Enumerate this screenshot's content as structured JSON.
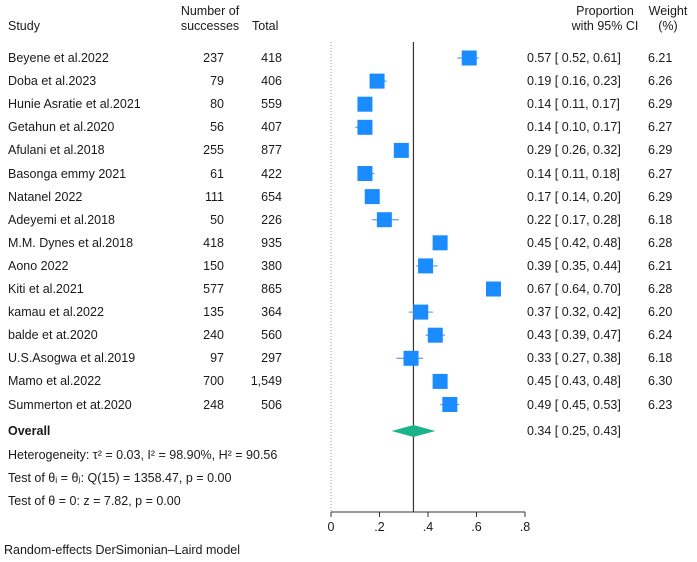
{
  "headers": {
    "study": "Study",
    "successes_line1": "Number of",
    "successes_line2": "successes",
    "total": "Total",
    "proportion_line1": "Proportion",
    "proportion_line2": "with 95% CI",
    "weight_line1": "Weight",
    "weight_line2": "(%)"
  },
  "studies": [
    {
      "study": "Beyene et al.2022",
      "successes": "237",
      "total": "418",
      "ci_text": "0.57 [ 0.52, 0.61]",
      "weight": "6.21"
    },
    {
      "study": "Doba et al.2023",
      "successes": "79",
      "total": "406",
      "ci_text": "0.19 [ 0.16, 0.23]",
      "weight": "6.26"
    },
    {
      "study": "Hunie Asratie et al.2021",
      "successes": "80",
      "total": "559",
      "ci_text": "0.14 [ 0.11, 0.17]",
      "weight": "6.29"
    },
    {
      "study": "Getahun et al.2020",
      "successes": "56",
      "total": "407",
      "ci_text": "0.14 [ 0.10, 0.17]",
      "weight": "6.27"
    },
    {
      "study": "Afulani et al.2018",
      "successes": "255",
      "total": "877",
      "ci_text": "0.29 [ 0.26, 0.32]",
      "weight": "6.29"
    },
    {
      "study": "Basonga emmy 2021",
      "successes": "61",
      "total": "422",
      "ci_text": "0.14 [ 0.11, 0.18]",
      "weight": "6.27"
    },
    {
      "study": "Natanel 2022",
      "successes": "111",
      "total": "654",
      "ci_text": "0.17 [ 0.14, 0.20]",
      "weight": "6.29"
    },
    {
      "study": "Adeyemi et al.2018",
      "successes": "50",
      "total": "226",
      "ci_text": "0.22 [ 0.17, 0.28]",
      "weight": "6.18"
    },
    {
      "study": "M.M. Dynes et al.2018",
      "successes": "418",
      "total": "935",
      "ci_text": "0.45 [ 0.42, 0.48]",
      "weight": "6.28"
    },
    {
      "study": "Aono 2022",
      "successes": "150",
      "total": "380",
      "ci_text": "0.39 [ 0.35, 0.44]",
      "weight": "6.21"
    },
    {
      "study": " Kiti et al.2021",
      "successes": "577",
      "total": "865",
      "ci_text": "0.67 [ 0.64, 0.70]",
      "weight": "6.28"
    },
    {
      "study": "kamau et al.2022",
      "successes": "135",
      "total": "364",
      "ci_text": "0.37 [ 0.32, 0.42]",
      "weight": "6.20"
    },
    {
      "study": "balde et at.2020",
      "successes": "240",
      "total": "560",
      "ci_text": "0.43 [ 0.39, 0.47]",
      "weight": "6.24"
    },
    {
      "study": "U.S.Asogwa et al.2019",
      "successes": "97",
      "total": "297",
      "ci_text": "0.33 [ 0.27, 0.38]",
      "weight": "6.18"
    },
    {
      "study": "Mamo et al.2022",
      "successes": "700",
      "total": "1,549",
      "ci_text": "0.45 [ 0.43, 0.48]",
      "weight": "6.30"
    },
    {
      "study": "Summerton et at.2020",
      "successes": "248",
      "total": "506",
      "ci_text": "0.49 [ 0.45, 0.53]",
      "weight": "6.23"
    }
  ],
  "overall": {
    "label": "Overall",
    "ci_text": "0.34 [ 0.25, 0.43]"
  },
  "stats": {
    "heterogeneity": "Heterogeneity: τ² = 0.03, I² = 98.90%, H² = 90.56",
    "test_equal": "Test of θᵢ = θⱼ: Q(15) = 1358.47, p = 0.00",
    "test_zero": "Test of θ = 0: z = 7.82, p = 0.00"
  },
  "footer": "Random-effects DerSimonian–Laird model",
  "colors": {
    "marker": "#1a8cff",
    "ci_line": "#6aa8e8",
    "diamond": "#1db38a",
    "axis": "#333333",
    "null_line": "#999999"
  },
  "chart_data": {
    "type": "forest",
    "xlim": [
      0,
      0.8
    ],
    "x_ticks": [
      "0",
      ".2",
      ".4",
      ".6",
      ".8"
    ],
    "x_tick_values": [
      0,
      0.2,
      0.4,
      0.6,
      0.8
    ],
    "null_line": 0,
    "overall_line": 0.34,
    "studies": [
      {
        "estimate": 0.57,
        "lower": 0.52,
        "upper": 0.61,
        "weight": 6.21
      },
      {
        "estimate": 0.19,
        "lower": 0.16,
        "upper": 0.23,
        "weight": 6.26
      },
      {
        "estimate": 0.14,
        "lower": 0.11,
        "upper": 0.17,
        "weight": 6.29
      },
      {
        "estimate": 0.14,
        "lower": 0.1,
        "upper": 0.17,
        "weight": 6.27
      },
      {
        "estimate": 0.29,
        "lower": 0.26,
        "upper": 0.32,
        "weight": 6.29
      },
      {
        "estimate": 0.14,
        "lower": 0.11,
        "upper": 0.18,
        "weight": 6.27
      },
      {
        "estimate": 0.17,
        "lower": 0.14,
        "upper": 0.2,
        "weight": 6.29
      },
      {
        "estimate": 0.22,
        "lower": 0.17,
        "upper": 0.28,
        "weight": 6.18
      },
      {
        "estimate": 0.45,
        "lower": 0.42,
        "upper": 0.48,
        "weight": 6.28
      },
      {
        "estimate": 0.39,
        "lower": 0.35,
        "upper": 0.44,
        "weight": 6.21
      },
      {
        "estimate": 0.67,
        "lower": 0.64,
        "upper": 0.7,
        "weight": 6.28
      },
      {
        "estimate": 0.37,
        "lower": 0.32,
        "upper": 0.42,
        "weight": 6.2
      },
      {
        "estimate": 0.43,
        "lower": 0.39,
        "upper": 0.47,
        "weight": 6.24
      },
      {
        "estimate": 0.33,
        "lower": 0.27,
        "upper": 0.38,
        "weight": 6.18
      },
      {
        "estimate": 0.45,
        "lower": 0.43,
        "upper": 0.48,
        "weight": 6.3
      },
      {
        "estimate": 0.49,
        "lower": 0.45,
        "upper": 0.53,
        "weight": 6.23
      }
    ],
    "overall": {
      "estimate": 0.34,
      "lower": 0.25,
      "upper": 0.43
    }
  }
}
